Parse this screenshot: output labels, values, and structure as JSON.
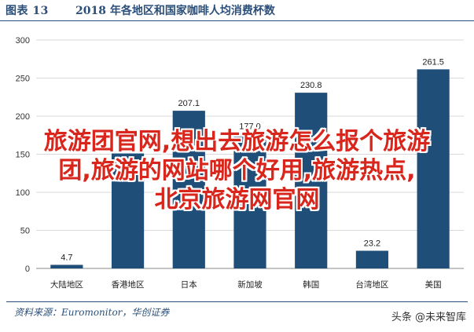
{
  "header": {
    "label": "图表 13",
    "title": "2018 年各地区和国家咖啡人均消费杯数"
  },
  "chart_data": {
    "type": "bar",
    "title": "2018 年各地区和国家咖啡人均消费杯数",
    "categories": [
      "大陆地区",
      "香港地区",
      "日本",
      "新加坡",
      "韩国",
      "台湾地区",
      "美国"
    ],
    "values": [
      4.7,
      151.0,
      207.1,
      177.0,
      230.8,
      23.2,
      261.5
    ],
    "value_labels": [
      "4.7",
      "",
      "207.1",
      "177.0",
      "230.8",
      "23.2",
      "261.5"
    ],
    "ylim": [
      0,
      300
    ],
    "yticks": [
      "0",
      "50",
      "100",
      "150",
      "200",
      "250",
      "300"
    ],
    "grid": true,
    "bar_color": "#1f4e79"
  },
  "footer": {
    "source": "资料来源：Euromonitor，华创证券"
  },
  "overlay": {
    "lines": [
      "旅游团官网,想出去旅游怎么报个旅游",
      "团,旅游的网站哪个好用,旅游热点,",
      "北京旅游网官网"
    ]
  },
  "watermark": {
    "text": "头条 @未来智库"
  }
}
